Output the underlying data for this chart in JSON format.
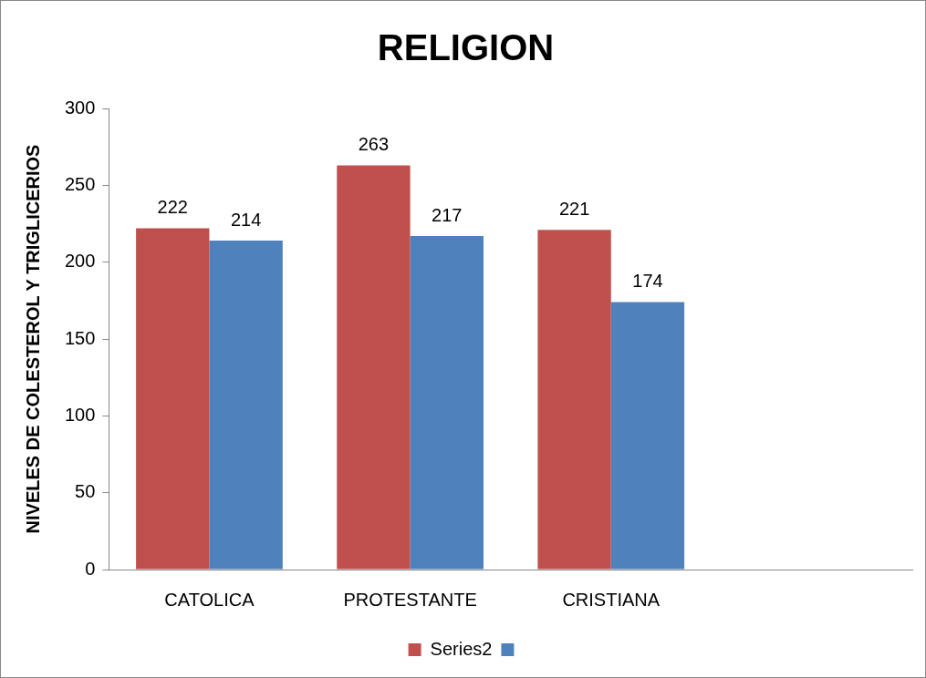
{
  "chart_data": {
    "type": "bar",
    "title": "RELIGION",
    "ylabel": "NIVELES DE COLESTEROL Y TRIGLICERIOS",
    "categories": [
      "CATOLICA",
      "PROTESTANTE",
      "CRISTIANA",
      null
    ],
    "series": [
      {
        "name": "Series2",
        "color": "#c0504d",
        "values": [
          222,
          263,
          221,
          null
        ]
      },
      {
        "color": "#4f81bd",
        "values": [
          214,
          217,
          174,
          null
        ]
      }
    ],
    "ylim": [
      0,
      300
    ],
    "yticks": [
      0,
      50,
      100,
      150,
      200,
      250,
      300
    ],
    "grid": false,
    "legend": "bottom",
    "data_labels": true
  }
}
